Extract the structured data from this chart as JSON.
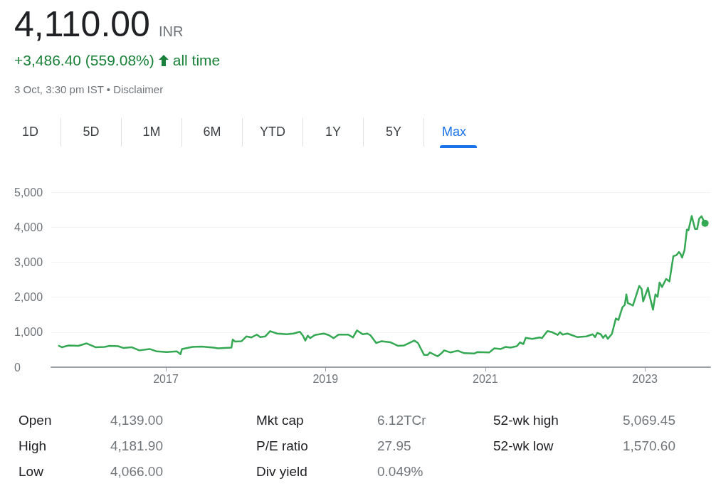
{
  "chart_data": [
    {
      "type": "line",
      "title": "4,110.00",
      "annotations": [
        "INR",
        "+3,486.40 (559.08%)",
        "all time",
        "3 Oct, 3:30 pm IST • Disclaimer",
        "1D",
        "5D",
        "1M",
        "6M",
        "YTD",
        "1Y",
        "5Y",
        "Max"
      ],
      "x": [
        "2015-08-28",
        "2015-09-13",
        "2015-10-15",
        "2015-11-28",
        "2016-01-05",
        "2016-02-14",
        "2016-03-27",
        "2016-04-19",
        "2016-05-28",
        "2016-06-20",
        "2016-07-28",
        "2016-09-02",
        "2016-10-19",
        "2016-11-21",
        "2017-01-05",
        "2017-02-21",
        "2017-03-09",
        "2017-03-16",
        "2017-05-03",
        "2017-06-13",
        "2017-08-07",
        "2017-08-28",
        "2017-10-28",
        "2017-11-03",
        "2017-11-14",
        "2017-12-13",
        "2018-01-05",
        "2018-01-28",
        "2018-02-21",
        "2018-03-09",
        "2018-04-01",
        "2018-04-23",
        "2018-05-25",
        "2018-07-08",
        "2018-08-07",
        "2018-09-06",
        "2018-09-20",
        "2018-10-01",
        "2018-10-12",
        "2018-10-23",
        "2018-11-14",
        "2018-12-24",
        "2019-01-15",
        "2019-02-07",
        "2019-03-02",
        "2019-04-15",
        "2019-05-07",
        "2019-05-25",
        "2019-06-20",
        "2019-07-12",
        "2019-07-26",
        "2019-08-21",
        "2019-09-13",
        "2019-10-26",
        "2019-11-28",
        "2019-12-27",
        "2020-02-11",
        "2020-02-28",
        "2020-03-27",
        "2020-04-12",
        "2020-04-23",
        "2020-05-28",
        "2020-06-13",
        "2020-06-27",
        "2020-07-26",
        "2020-08-28",
        "2020-09-27",
        "2020-11-11",
        "2020-11-25",
        "2021-01-19",
        "2021-02-11",
        "2021-03-13",
        "2021-04-05",
        "2021-04-26",
        "2021-05-25",
        "2021-06-09",
        "2021-06-24",
        "2021-07-05",
        "2021-08-03",
        "2021-09-06",
        "2021-09-17",
        "2021-10-12",
        "2021-11-03",
        "2021-11-28",
        "2021-12-09",
        "2021-12-20",
        "2022-01-12",
        "2022-02-25",
        "2022-04-08",
        "2022-05-07",
        "2022-05-18",
        "2022-05-28",
        "2022-06-13",
        "2022-06-24",
        "2022-07-05",
        "2022-07-15",
        "2022-08-03",
        "2022-08-21",
        "2022-09-02",
        "2022-09-20",
        "2022-10-01",
        "2022-10-08",
        "2022-10-15",
        "2022-11-07",
        "2022-12-06",
        "2022-12-17",
        "2022-12-24",
        "2023-01-15",
        "2023-01-22",
        "2023-02-07",
        "2023-02-18",
        "2023-02-28",
        "2023-03-09",
        "2023-03-20",
        "2023-04-08",
        "2023-04-23",
        "2023-05-11",
        "2023-05-25",
        "2023-06-06",
        "2023-06-13",
        "2023-06-20",
        "2023-07-01",
        "2023-07-12",
        "2023-07-19",
        "2023-08-03",
        "2023-08-18",
        "2023-08-28",
        "2023-09-06",
        "2023-09-17",
        "2023-09-27",
        "2023-10-03"
      ],
      "series": [
        {
          "color": "#34a853",
          "values": [
            620,
            570,
            620,
            610,
            680,
            570,
            580,
            610,
            600,
            550,
            570,
            480,
            520,
            450,
            430,
            450,
            370,
            520,
            580,
            590,
            560,
            540,
            560,
            790,
            730,
            740,
            880,
            850,
            930,
            860,
            880,
            1030,
            960,
            940,
            960,
            1010,
            900,
            760,
            900,
            830,
            920,
            960,
            920,
            830,
            930,
            930,
            850,
            1050,
            940,
            960,
            910,
            690,
            740,
            710,
            610,
            620,
            760,
            690,
            350,
            350,
            420,
            310,
            390,
            480,
            420,
            470,
            400,
            390,
            430,
            420,
            540,
            520,
            580,
            560,
            600,
            710,
            660,
            840,
            810,
            850,
            830,
            1030,
            1000,
            920,
            1000,
            930,
            960,
            860,
            880,
            940,
            860,
            980,
            940,
            840,
            920,
            810,
            950,
            1390,
            1350,
            1710,
            1780,
            2080,
            1830,
            1760,
            2320,
            2230,
            1880,
            2270,
            2050,
            1640,
            2080,
            2010,
            2420,
            2290,
            2520,
            2450,
            3170,
            3200,
            3290,
            3230,
            3130,
            3340,
            3930,
            3910,
            4320,
            3950,
            3950,
            4240,
            4310,
            4180,
            4110
          ]
        }
      ],
      "xlim": [
        "2015-07-27",
        "2023-10-27"
      ],
      "xticks": [
        {
          "value": "2017-01-01",
          "label": "2017"
        },
        {
          "value": "2019-01-01",
          "label": "2019"
        },
        {
          "value": "2021-01-01",
          "label": "2021"
        },
        {
          "value": "2023-01-01",
          "label": "2023"
        }
      ],
      "ylim": [
        0,
        5000
      ],
      "yticks": [
        0,
        {
          "value": 1000,
          "label": "1,000"
        },
        {
          "value": 2000,
          "label": "2,000"
        },
        {
          "value": 3000,
          "label": "3,000"
        },
        {
          "value": 4000,
          "label": "4,000"
        },
        {
          "value": 5000,
          "label": "5,000"
        }
      ],
      "grid": "y"
    },
    {
      "type": "other",
      "annotations": [
        "Open",
        "4,139.00",
        "High",
        "4,181.90",
        "Low",
        "4,066.00",
        "Mkt cap",
        "6.12TCr",
        "P/E ratio",
        "27.95",
        "Div yield",
        "0.049%",
        "52-wk high",
        "5,069.45",
        "52-wk low",
        "1,570.60"
      ]
    }
  ]
}
